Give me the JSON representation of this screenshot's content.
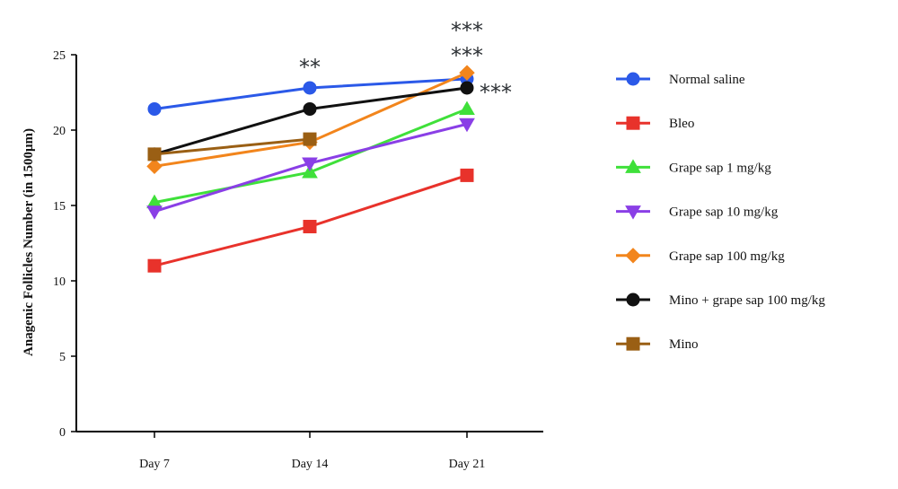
{
  "chart_data": {
    "type": "line",
    "categories": [
      "Day 7",
      "Day 14",
      "Day 21"
    ],
    "ylabel": "Anagenic Follicles Number (in 1500μm)",
    "xlabel": "",
    "ylim": [
      0,
      25
    ],
    "yticks": [
      "0",
      "5",
      "10",
      "15",
      "20",
      "25"
    ],
    "grid": false,
    "legend_position": "right",
    "series": [
      {
        "name": "Normal saline",
        "values": [
          21.4,
          22.8,
          23.4
        ],
        "color": "#2b59e8",
        "marker": "circle"
      },
      {
        "name": "Bleo",
        "values": [
          11.0,
          13.6,
          17.0
        ],
        "color": "#e8322b",
        "marker": "square"
      },
      {
        "name": "Grape sap 1 mg/kg",
        "values": [
          15.2,
          17.2,
          21.4
        ],
        "color": "#3fe03a",
        "marker": "triangle-up"
      },
      {
        "name": "Grape sap 10 mg/kg",
        "values": [
          14.6,
          17.8,
          20.4
        ],
        "color": "#8a3fe6",
        "marker": "triangle-down"
      },
      {
        "name": "Grape sap 100 mg/kg",
        "values": [
          17.6,
          19.2,
          23.8
        ],
        "color": "#f2851c",
        "marker": "diamond"
      },
      {
        "name": "Mino + grape sap 100 mg/kg",
        "values": [
          18.4,
          21.4,
          22.8
        ],
        "color": "#111111",
        "marker": "circle"
      },
      {
        "name": "Mino",
        "values": [
          18.4,
          19.4,
          null
        ],
        "color": "#9a5f14",
        "marker": "square"
      }
    ],
    "annotations": [
      {
        "category": "Day 14",
        "text": "**"
      },
      {
        "category": "Day 21",
        "text": "***"
      },
      {
        "category": "Day 21",
        "text": "***"
      },
      {
        "category": "Day 21",
        "text": "***"
      }
    ]
  }
}
